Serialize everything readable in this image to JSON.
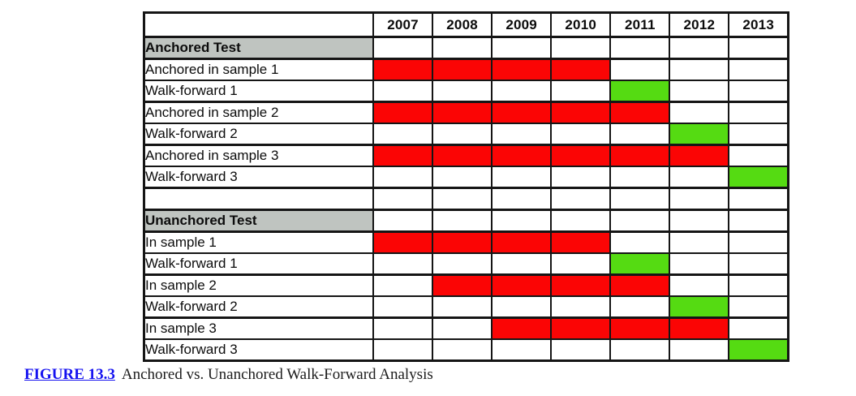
{
  "colors": {
    "in_sample": "#fb0505",
    "walk_forward": "#55db12",
    "section_bg": "#bfc4c0",
    "border": "#151515",
    "figure_label": "#1512f0",
    "caption_text": "#1c1c1c"
  },
  "caption": {
    "figure_label": "FIGURE 13.3",
    "text": "Anchored vs. Unanchored Walk-Forward Analysis"
  },
  "chart_data": {
    "type": "table",
    "title": "Anchored vs. Unanchored Walk-Forward Analysis",
    "columns": [
      "2007",
      "2008",
      "2009",
      "2010",
      "2011",
      "2012",
      "2013"
    ],
    "cell_semantics": {
      "in_sample": "red filled cells = in-sample optimization period",
      "walk_forward": "green filled cells = walk-forward out-of-sample period"
    },
    "sections": [
      {
        "title": "Anchored Test",
        "rows": [
          {
            "label": "Anchored in sample 1",
            "kind": "in_sample",
            "start": 2007,
            "end": 2010
          },
          {
            "label": "Walk-forward 1",
            "kind": "walk_forward",
            "start": 2011,
            "end": 2011
          },
          {
            "label": "Anchored in sample 2",
            "kind": "in_sample",
            "start": 2007,
            "end": 2011
          },
          {
            "label": "Walk-forward 2",
            "kind": "walk_forward",
            "start": 2012,
            "end": 2012
          },
          {
            "label": "Anchored in sample 3",
            "kind": "in_sample",
            "start": 2007,
            "end": 2012
          },
          {
            "label": "Walk-forward 3",
            "kind": "walk_forward",
            "start": 2013,
            "end": 2013
          }
        ]
      },
      {
        "title": "Unanchored Test",
        "rows": [
          {
            "label": "In sample 1",
            "kind": "in_sample",
            "start": 2007,
            "end": 2010
          },
          {
            "label": "Walk-forward 1",
            "kind": "walk_forward",
            "start": 2011,
            "end": 2011
          },
          {
            "label": "In sample 2",
            "kind": "in_sample",
            "start": 2008,
            "end": 2011
          },
          {
            "label": "Walk-forward 2",
            "kind": "walk_forward",
            "start": 2012,
            "end": 2012
          },
          {
            "label": "In sample 3",
            "kind": "in_sample",
            "start": 2009,
            "end": 2012
          },
          {
            "label": "Walk-forward 3",
            "kind": "walk_forward",
            "start": 2013,
            "end": 2013
          }
        ]
      }
    ]
  }
}
